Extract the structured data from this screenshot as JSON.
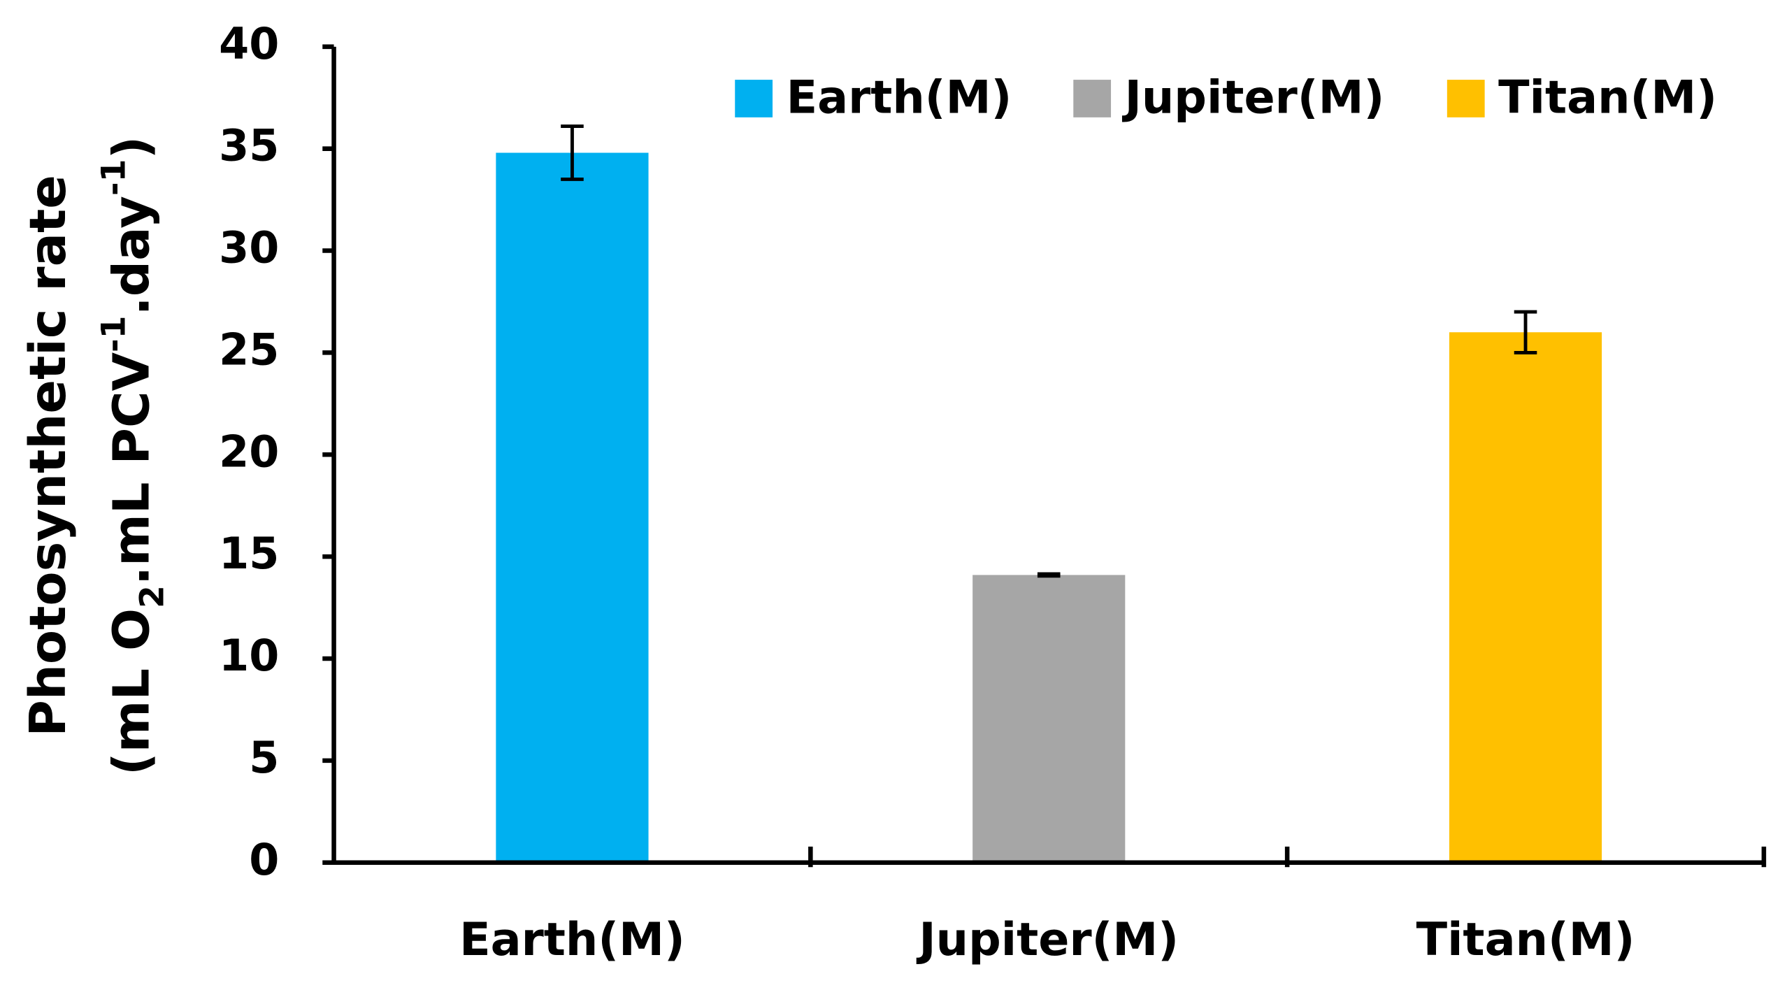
{
  "chart_data": {
    "type": "bar",
    "y_title": "Photosynthetic rate",
    "y_title_parts": [
      {
        "text": "(mL O",
        "shift": "none"
      },
      {
        "text": "2",
        "shift": "sub"
      },
      {
        "text": ".mL PCV",
        "shift": "none"
      },
      {
        "text": "-1",
        "shift": "super"
      },
      {
        "text": ".day",
        "shift": "none"
      },
      {
        "text": "-1",
        "shift": "super"
      },
      {
        "text": ")",
        "shift": "none"
      }
    ],
    "categories": [
      "Earth(M)",
      "Jupiter(M)",
      "Titan(M)"
    ],
    "values": [
      34.8,
      14.1,
      26
    ],
    "errors": [
      1.3,
      0.05,
      1.0
    ],
    "colors": [
      "#00b0f0",
      "#a6a6a6",
      "#ffc000"
    ],
    "ylim": [
      0,
      40
    ],
    "yticks": [
      0,
      5,
      10,
      15,
      20,
      25,
      30,
      35,
      40
    ],
    "legend": "top-right",
    "grid": false
  }
}
